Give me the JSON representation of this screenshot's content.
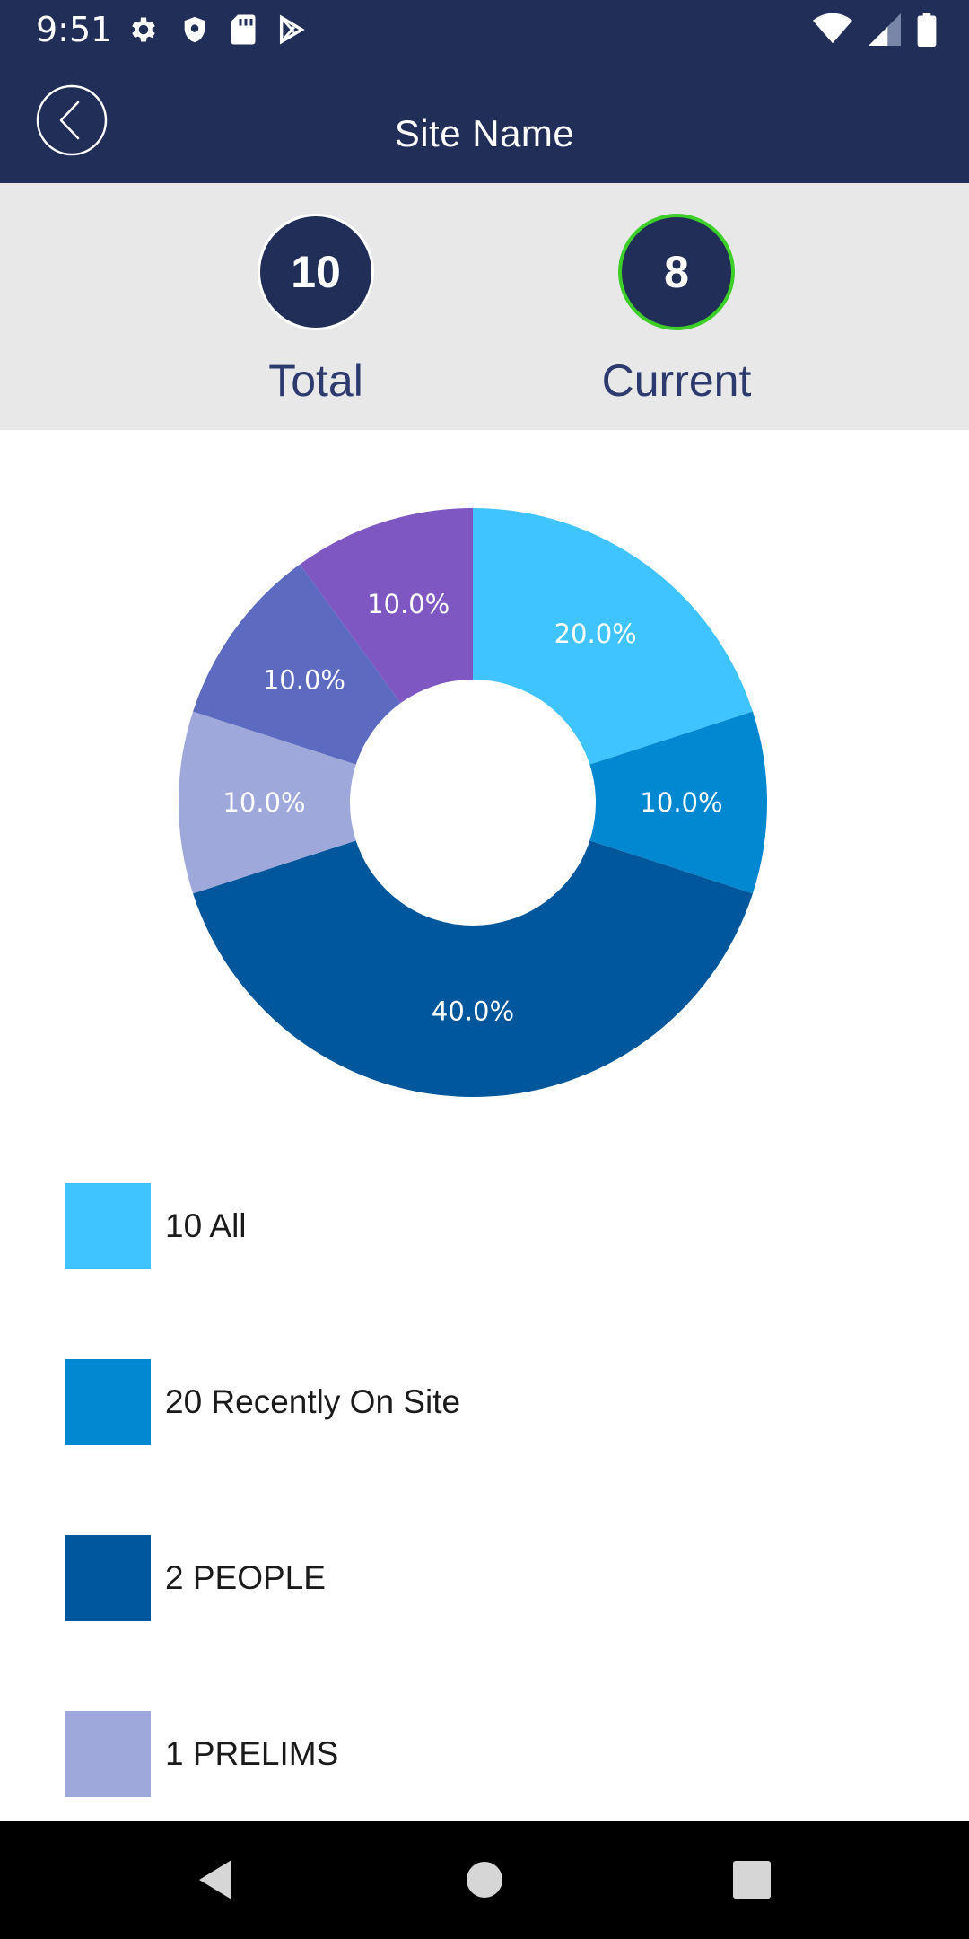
{
  "status_bar": {
    "time": "9:51",
    "left_icons": [
      "gear-icon",
      "shield-icon",
      "sd-card-icon",
      "play-store-icon"
    ],
    "right_icons": [
      "wifi-icon",
      "cell-signal-icon",
      "battery-icon"
    ]
  },
  "app_bar": {
    "title": "Site Name",
    "back_icon": "chevron-left-circle-icon"
  },
  "stats": {
    "total": {
      "value": "10",
      "label": "Total"
    },
    "current": {
      "value": "8",
      "label": "Current",
      "ring_color": "#3ccf28"
    }
  },
  "colors": {
    "header": "#212e57",
    "panel": "#e8e8e8"
  },
  "chart_data": {
    "type": "pie",
    "donut": true,
    "slices": [
      {
        "label": "10 All",
        "value": 20.0,
        "display": "20.0%",
        "color": "#40c4ff"
      },
      {
        "label": "20 Recently On Site",
        "value": 10.0,
        "display": "10.0%",
        "color": "#0288d1"
      },
      {
        "label": "2 PEOPLE",
        "value": 40.0,
        "display": "40.0%",
        "color": "#01579b"
      },
      {
        "label": "1 PRELIMS",
        "value": 10.0,
        "display": "10.0%",
        "color": "#9fa8da"
      },
      {
        "label": "",
        "value": 10.0,
        "display": "10.0%",
        "color": "#5c6bc0"
      },
      {
        "label": "",
        "value": 10.0,
        "display": "10.0%",
        "color": "#7e57c2"
      }
    ],
    "legend_placement": "bottom"
  },
  "legend": {
    "items": [
      {
        "label": "10 All",
        "color": "#40c4ff"
      },
      {
        "label": "20 Recently On Site",
        "color": "#0288d1"
      },
      {
        "label": "2 PEOPLE",
        "color": "#01579b"
      },
      {
        "label": "1 PRELIMS",
        "color": "#9fa8da"
      }
    ]
  },
  "nav_bar": {
    "icons": [
      "nav-back-icon",
      "nav-home-icon",
      "nav-recents-icon"
    ]
  }
}
